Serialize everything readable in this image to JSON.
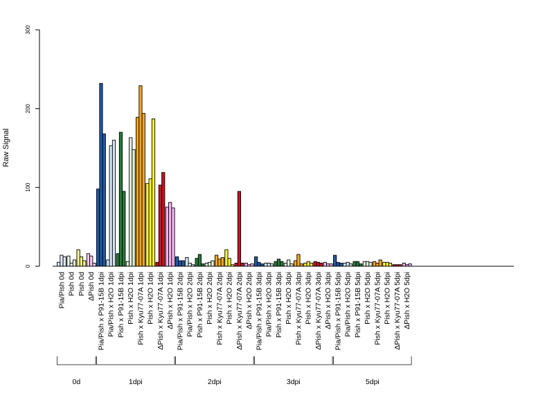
{
  "chart_data": {
    "type": "bar",
    "title": "",
    "ylabel": "Raw Signal",
    "xlabel": "",
    "ylim": [
      0,
      300
    ],
    "yticks": [
      0,
      100,
      200,
      300
    ],
    "grid": false,
    "legend": "none",
    "categories": [
      "Pia/Pish 0d",
      "Pish 0d",
      "Pish 0d",
      "ΔPish 0d",
      "Pia/Pish x P91-15B 1dpi",
      "Pia/Pish x H2O 1dpi",
      "Pish x P91-15B 1dpi",
      "Pish x H2O 1dpi",
      "Pish x Kyu77-07A 1dpi",
      "Pish x H2O 1dpi",
      "ΔPish x Kyu77-07A 1dpi",
      "ΔPish x H2O 1dpi",
      "Pia/Pish x P91-15B 2dpi",
      "Pia/Pish x H2O 2dpi",
      "Pish x P91-15B 2dpi",
      "Pish x H2O 2dpi",
      "Pish x Kyu77-07A 2dpi",
      "Pish x H2O 2dpi",
      "ΔPish x Kyu77-07A 2dpi",
      "ΔPish x H2O 2dpi",
      "Pia/Pish x P91-15B 3dpi",
      "Pia/Pish x H2O 3dpi",
      "Pish x P91-15B 3dpi",
      "Pish x H2O 3dpi",
      "Pish x Kyu77-07A 3dpi",
      "Pish x H2O 3dpi",
      "ΔPish x Kyu77-07A 3dpi",
      "ΔPish x H2O 3dpi",
      "Pia/Pish x P91-15B 5dpi",
      "Pia/Pish x H2O 5dpi",
      "Pish x P91-15B 5dpi",
      "Pish x H2O 5dpi",
      "Pish x Kyu77-07A 5dpi",
      "Pish x H2O 5dpi",
      "ΔPish x Kyu77-07A 5dpi",
      "ΔPish x H2O 5dpi"
    ],
    "colors": [
      "#dde8f5",
      "#eef7e6",
      "#fbf48a",
      "#f7c6f0",
      "#1f5aa6",
      "#d3e6f6",
      "#2a7a3a",
      "#dff0d9",
      "#f5a623",
      "#fbf23a",
      "#cc1122",
      "#f5b4f0",
      "#1f5aa6",
      "#d3e6f6",
      "#2a7a3a",
      "#dff0d9",
      "#f5a623",
      "#fbf23a",
      "#cc1122",
      "#f5b4f0",
      "#1f5aa6",
      "#d3e6f6",
      "#2a7a3a",
      "#dff0d9",
      "#f5a623",
      "#fbf23a",
      "#cc1122",
      "#f5b4f0",
      "#1f5aa6",
      "#d3e6f6",
      "#2a7a3a",
      "#dff0d9",
      "#f5a623",
      "#fbf23a",
      "#cc1122",
      "#f5b4f0"
    ],
    "values": [
      [
        5,
        14,
        12
      ],
      [
        13,
        4,
        8
      ],
      [
        21,
        12,
        7
      ],
      [
        16,
        13,
        4
      ],
      [
        98,
        232,
        168
      ],
      [
        8,
        153,
        160
      ],
      [
        16,
        170,
        95
      ],
      [
        6,
        163,
        148
      ],
      [
        189,
        229,
        194
      ],
      [
        105,
        111,
        187
      ],
      [
        5,
        103,
        119
      ],
      [
        75,
        81,
        74
      ],
      [
        12,
        7,
        7
      ],
      [
        11,
        4,
        2
      ],
      [
        10,
        15,
        3
      ],
      [
        4,
        5,
        7
      ],
      [
        14,
        9,
        11
      ],
      [
        21,
        10,
        2
      ],
      [
        4,
        95,
        4
      ],
      [
        4,
        2,
        3
      ],
      [
        12,
        5,
        3
      ],
      [
        4,
        4,
        3
      ],
      [
        6,
        9,
        6
      ],
      [
        4,
        8,
        3
      ],
      [
        7,
        15,
        3
      ],
      [
        4,
        6,
        4
      ],
      [
        6,
        5,
        4
      ],
      [
        5,
        3,
        3
      ],
      [
        14,
        5,
        4
      ],
      [
        4,
        5,
        3
      ],
      [
        6,
        6,
        3
      ],
      [
        6,
        6,
        5
      ],
      [
        6,
        4,
        8
      ],
      [
        5,
        5,
        4
      ],
      [
        2,
        2,
        2
      ],
      [
        4,
        2,
        3
      ]
    ],
    "groups": [
      {
        "label": "0d",
        "start": 0,
        "end": 3
      },
      {
        "label": "1dpi",
        "start": 4,
        "end": 11
      },
      {
        "label": "2dpi",
        "start": 12,
        "end": 19
      },
      {
        "label": "3dpi",
        "start": 20,
        "end": 27
      },
      {
        "label": "5dpi",
        "start": 28,
        "end": 35
      }
    ]
  }
}
